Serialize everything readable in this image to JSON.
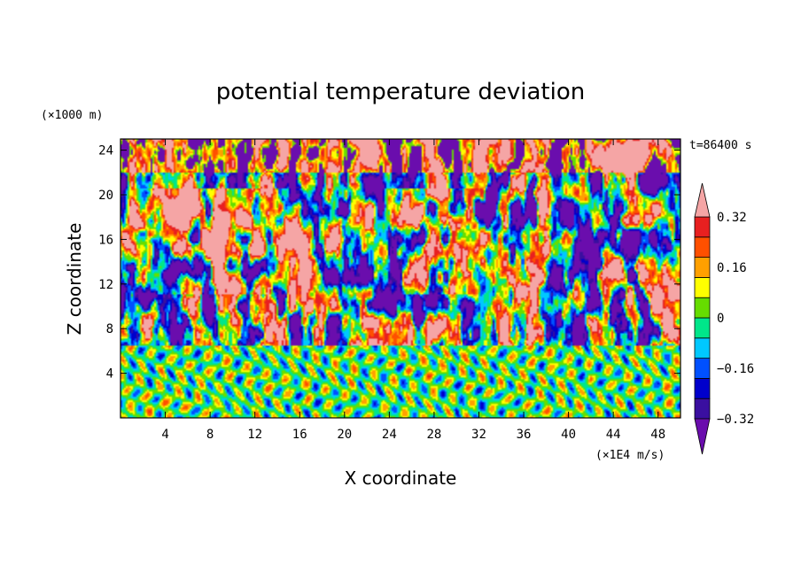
{
  "chart_data": {
    "type": "heatmap",
    "title": "potential temperature deviation",
    "xlabel": "X coordinate",
    "ylabel": "Z coordinate",
    "x_unit": "(×1E4 m/s)",
    "y_unit": "(×1000 m)",
    "time_label": "t=86400 s",
    "xlim": [
      0,
      50
    ],
    "ylim": [
      0,
      25
    ],
    "x_ticks": [
      4,
      8,
      12,
      16,
      20,
      24,
      28,
      32,
      36,
      40,
      44,
      48
    ],
    "y_ticks": [
      4,
      8,
      12,
      16,
      20,
      24
    ],
    "colorbar": {
      "levels": [
        -0.4,
        -0.32,
        -0.24,
        -0.16,
        -0.08,
        0,
        0.08,
        0.16,
        0.24,
        0.32,
        0.4
      ],
      "labels": [
        "0.32",
        "0.16",
        "0",
        "-0.16",
        "-0.32"
      ],
      "label_values": [
        0.32,
        0.16,
        0,
        -0.16,
        -0.32
      ],
      "colors": [
        "#6a0dad",
        "#3a0fa0",
        "#0000cc",
        "#0050ff",
        "#00c8ff",
        "#00e68a",
        "#66dd00",
        "#ffff00",
        "#ffa000",
        "#ff5000",
        "#e82020",
        "#f5a5a5"
      ],
      "extend": "both"
    },
    "grid": false,
    "legend_position": "right"
  }
}
